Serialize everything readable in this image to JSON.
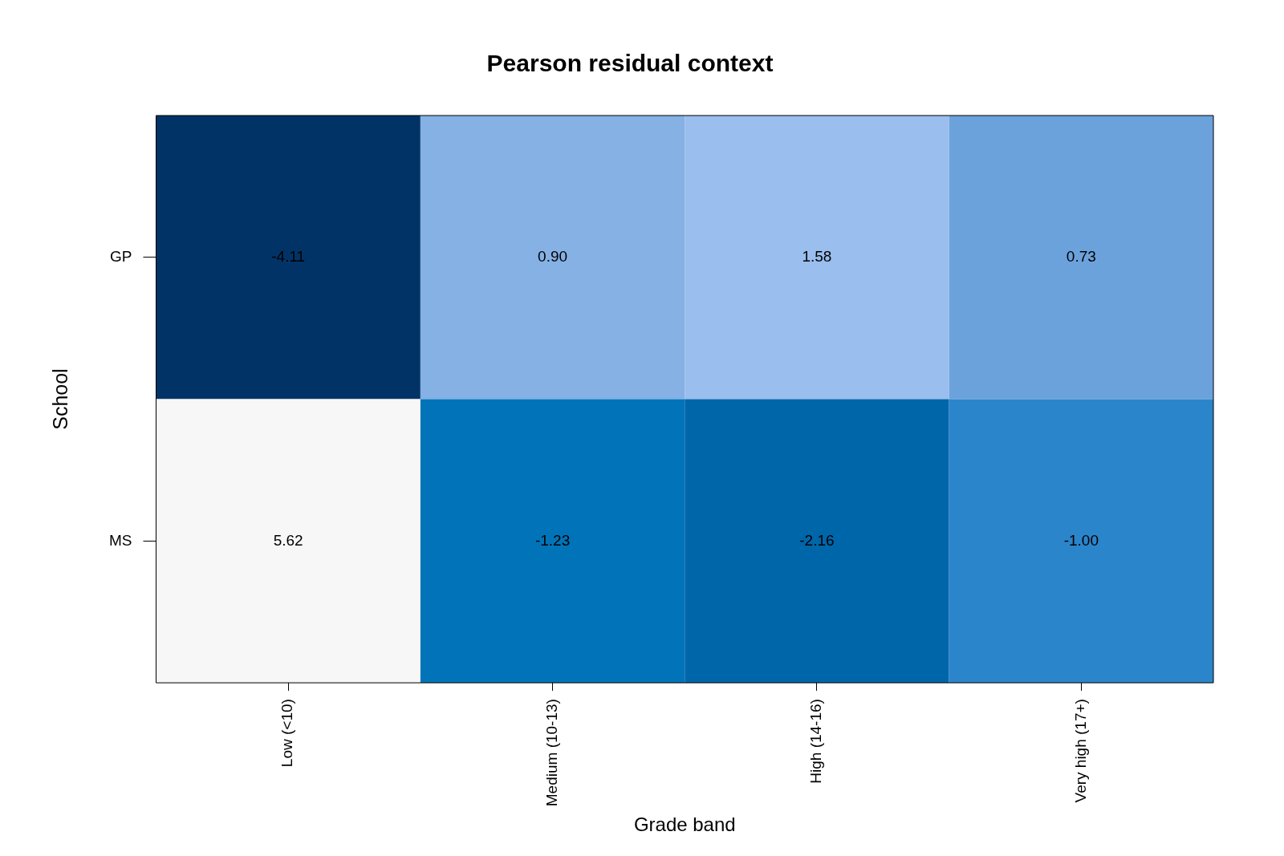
{
  "chart_data": {
    "type": "heatmap",
    "title": "Pearson residual context",
    "xlabel": "Grade band",
    "ylabel": "School",
    "categories": [
      "Low (<10)",
      "Medium (10-13)",
      "High (14-16)",
      "Very high (17+)"
    ],
    "y_categories": [
      "GP",
      "MS"
    ],
    "cells": [
      [
        -4.11,
        0.9,
        1.58,
        0.73
      ],
      [
        5.62,
        -1.23,
        -2.16,
        -1.0
      ]
    ],
    "cell_labels": [
      [
        "-4.11",
        "0.90",
        "1.58",
        "0.73"
      ],
      [
        "5.62",
        "-1.23",
        "-2.16",
        "-1.00"
      ]
    ],
    "colors": [
      [
        "#023366",
        "#85b1e5",
        "#9abeed",
        "#6ca2dc"
      ],
      [
        "#f7f7f7",
        "#0174b9",
        "#0066aa",
        "#2b85cb"
      ]
    ],
    "data_labels": true
  }
}
